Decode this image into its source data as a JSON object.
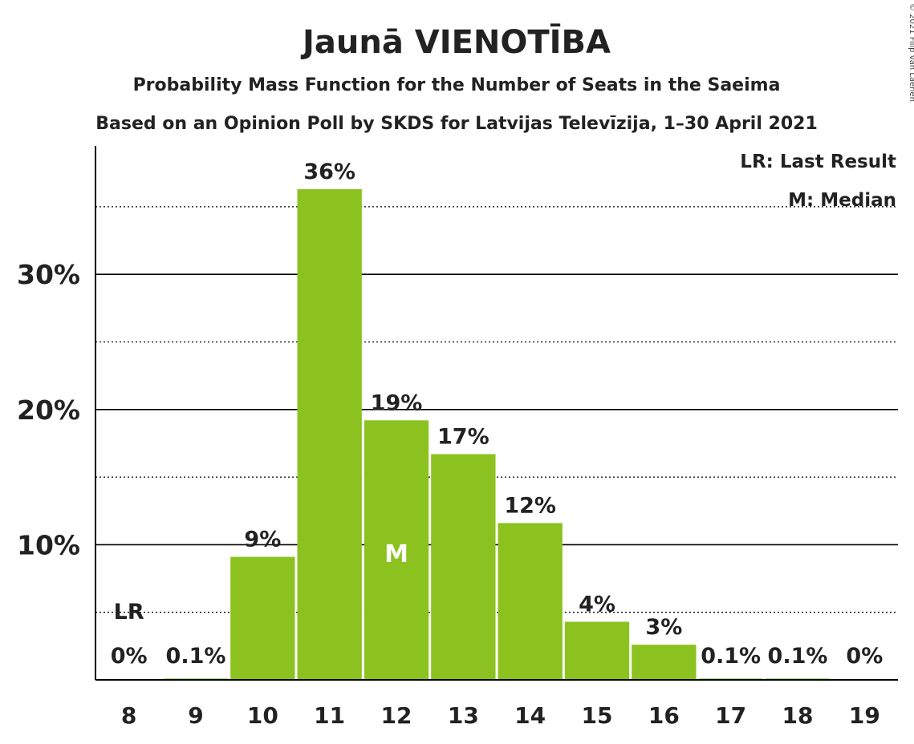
{
  "chart_data": {
    "type": "bar",
    "title": "Jaunā VIENOTĪBA",
    "subtitle": "Probability Mass Function for the Number of Seats in the Saeima",
    "subtitle2": "Based on an Opinion Poll by SKDS for Latvijas Televīzija, 1–30 April 2021",
    "copyright": "© 2021 Filip van Laenen",
    "legend": [
      "LR: Last Result",
      "M: Median"
    ],
    "categories": [
      "8",
      "9",
      "10",
      "11",
      "12",
      "13",
      "14",
      "15",
      "16",
      "17",
      "18",
      "19"
    ],
    "values": [
      0,
      0.1,
      9.1,
      36.3,
      19.2,
      16.7,
      11.6,
      4.3,
      2.6,
      0.1,
      0.1,
      0
    ],
    "data_labels": [
      "0%",
      "0.1%",
      "9%",
      "36%",
      "19%",
      "17%",
      "12%",
      "4%",
      "3%",
      "0.1%",
      "0.1%",
      "0%"
    ],
    "last_result": {
      "category": "8",
      "label": "LR"
    },
    "median": {
      "category": "12",
      "label": "M"
    },
    "y_ticks": [
      10,
      20,
      30
    ],
    "y_tick_labels": [
      "10%",
      "20%",
      "30%"
    ],
    "ylim": [
      0,
      39.5
    ],
    "grid": true,
    "bar_color": "#8cc21f",
    "axis_color": "#000000"
  }
}
